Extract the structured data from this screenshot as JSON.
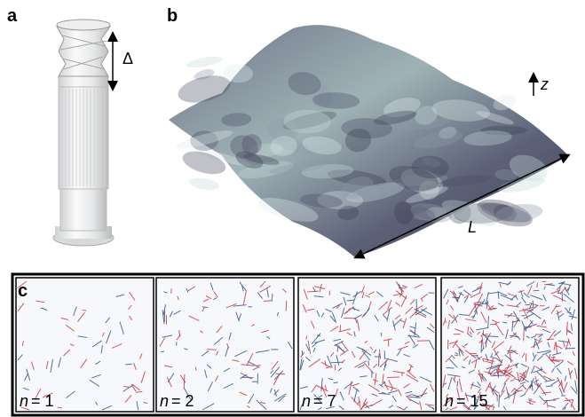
{
  "panels": {
    "a": {
      "label": "a",
      "annotation": "Δ"
    },
    "b": {
      "label": "b",
      "axis_label": "z",
      "length_label": "L"
    },
    "c": {
      "label": "c",
      "images": [
        {
          "variable": "n",
          "value": "= 1"
        },
        {
          "variable": "n",
          "value": "= 2"
        },
        {
          "variable": "n",
          "value": "= 7"
        },
        {
          "variable": "n",
          "value": "= 15"
        }
      ]
    }
  }
}
